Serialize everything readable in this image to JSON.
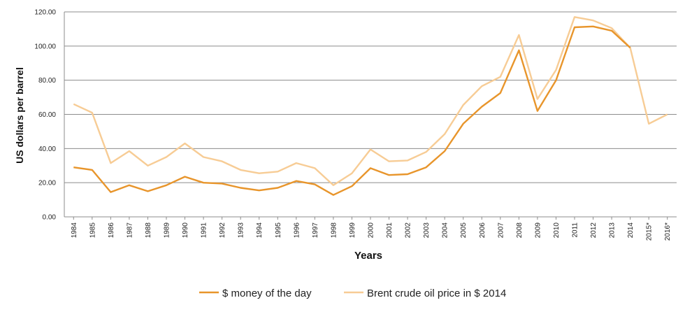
{
  "chart_data": {
    "type": "line",
    "title": "",
    "xlabel": "Years",
    "ylabel": "US dollars per barrel",
    "ylim": [
      0,
      120
    ],
    "y_ticks": [
      "0.00",
      "20.00",
      "40.00",
      "60.00",
      "80.00",
      "100.00",
      "120.00"
    ],
    "grid": "horizontal",
    "legend_position": "bottom",
    "categories": [
      "1984",
      "1985",
      "1986",
      "1987",
      "1988",
      "1989",
      "1990",
      "1991",
      "1992",
      "1993",
      "1994",
      "1995",
      "1996",
      "1997",
      "1998",
      "1999",
      "2000",
      "2001",
      "2002",
      "2003",
      "2004",
      "2005",
      "2006",
      "2007",
      "2008",
      "2009",
      "2010",
      "2011",
      "2012",
      "2013",
      "2014",
      "2015*",
      "2016*"
    ],
    "series": [
      {
        "name": "$ money of the day",
        "color": "#e8952b",
        "values": [
          29,
          27.5,
          14.5,
          18.5,
          15,
          18.5,
          23.5,
          20,
          19.5,
          17,
          15.5,
          17,
          21,
          19,
          12.8,
          18,
          28.5,
          24.5,
          25,
          29,
          38.5,
          54.5,
          64.5,
          72.5,
          97.5,
          62,
          80,
          111,
          111.5,
          109,
          99,
          null,
          null
        ]
      },
      {
        "name": "Brent crude oil price in $ 2014",
        "color": "#f7cc95",
        "values": [
          66,
          61,
          31.5,
          38.5,
          30,
          35,
          43,
          35,
          32.5,
          27.5,
          25.5,
          26.5,
          31.5,
          28.5,
          18.5,
          25.5,
          39.5,
          32.5,
          33,
          38,
          48.5,
          65.5,
          76.5,
          82,
          106.5,
          69,
          86,
          117,
          115,
          110.5,
          99,
          54.5,
          60
        ]
      }
    ]
  }
}
